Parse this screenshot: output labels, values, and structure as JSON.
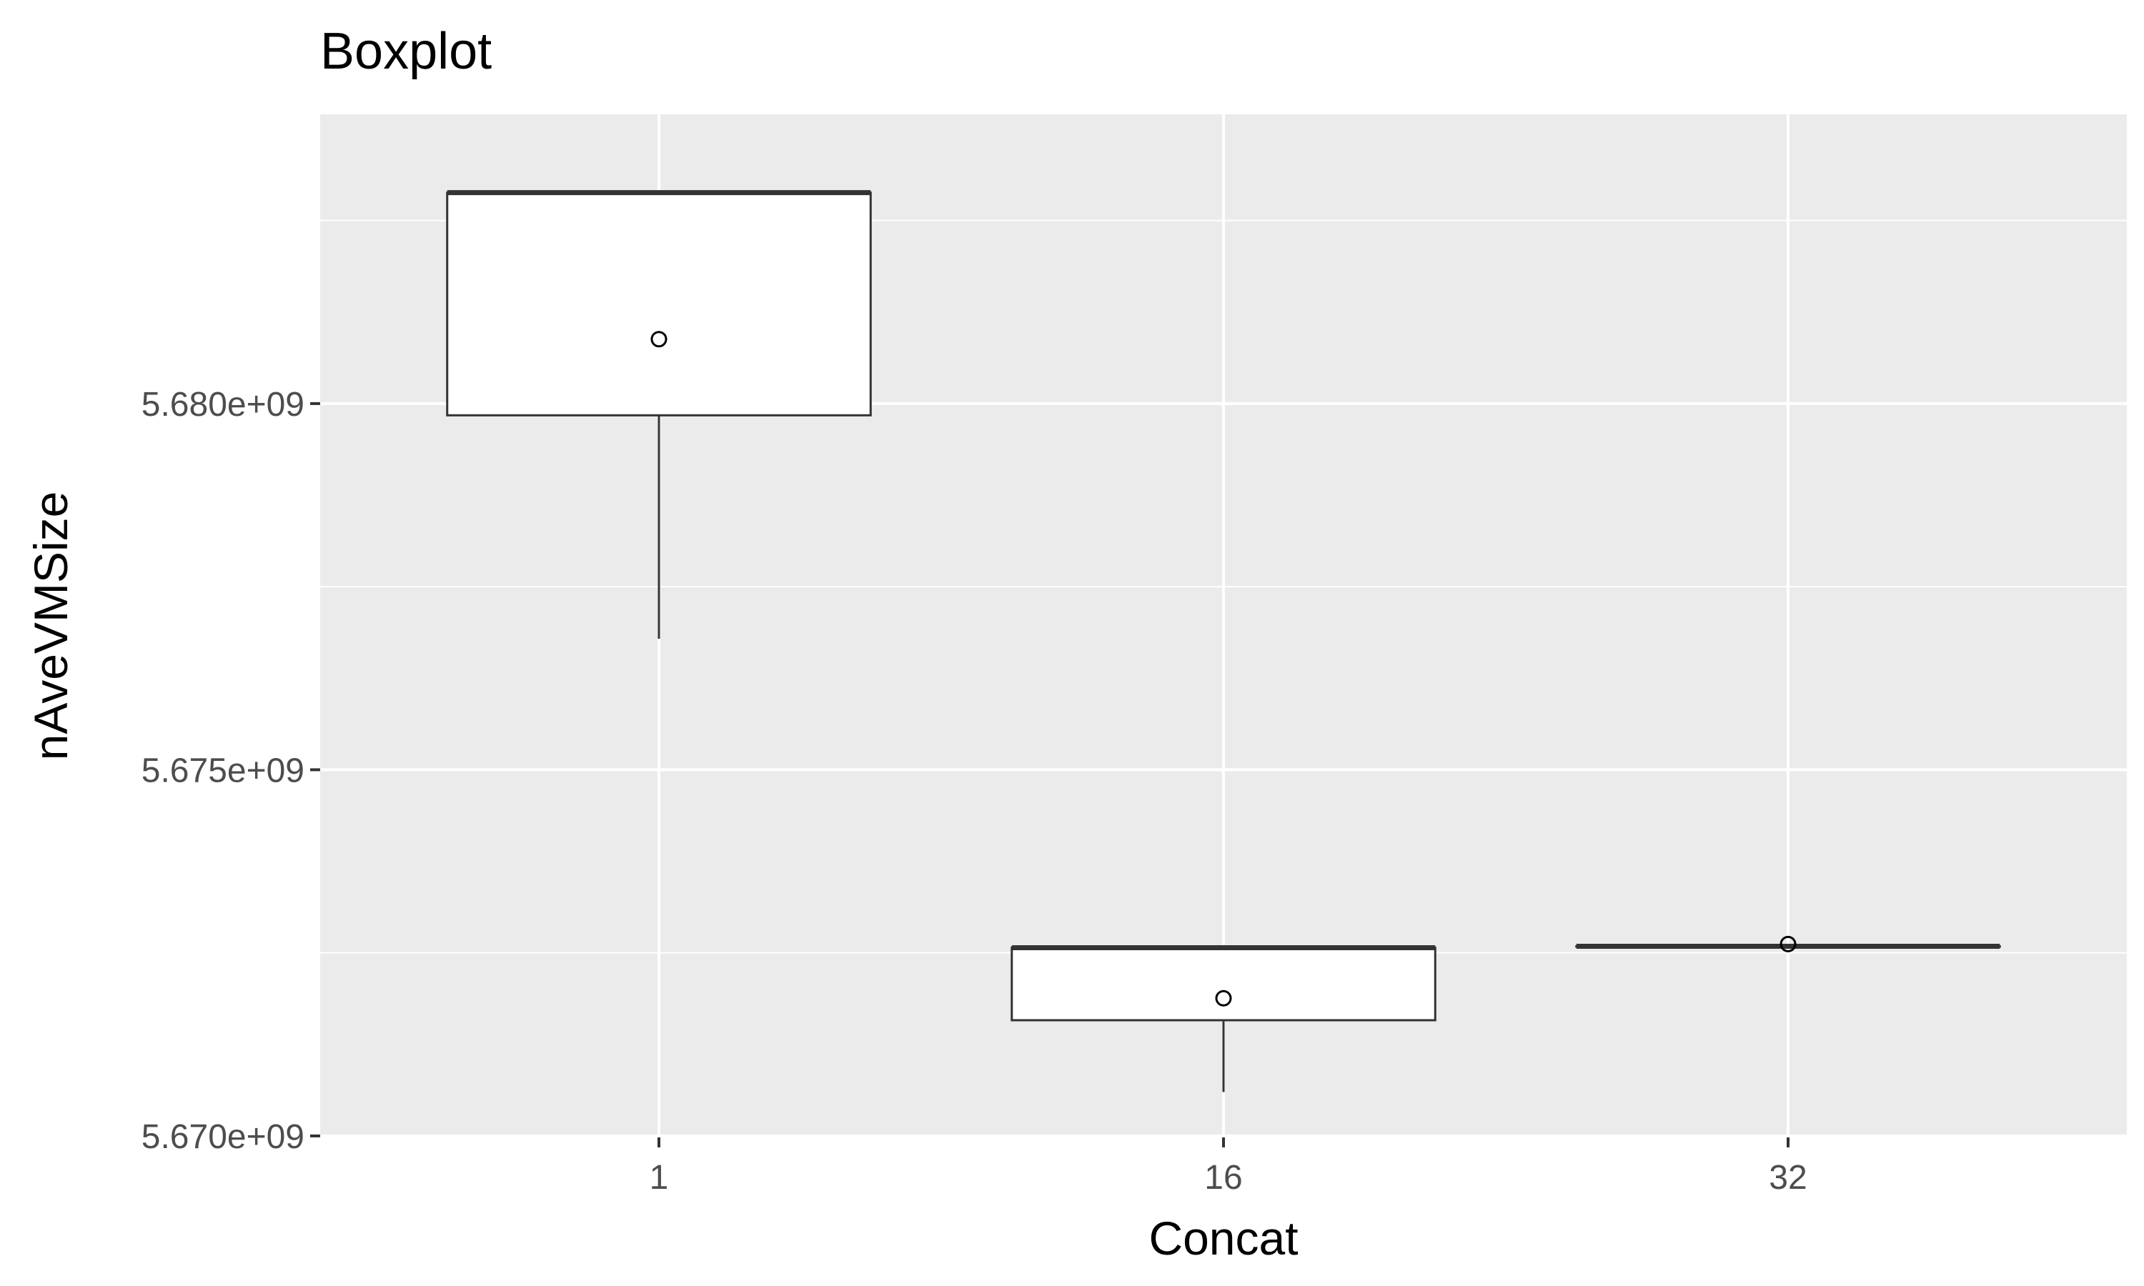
{
  "chart_data": {
    "type": "boxplot",
    "title": "Boxplot",
    "xlabel": "Concat",
    "ylabel": "nAveVMSize",
    "categories": [
      "1",
      "16",
      "32"
    ],
    "y_ticks": [
      5670000000,
      5675000000,
      5680000000
    ],
    "y_tick_labels": [
      "5.670e+09",
      "5.675e+09",
      "5.680e+09"
    ],
    "ylim": [
      5669980000,
      5683950000
    ],
    "grid": true,
    "boxes": [
      {
        "category": "1",
        "lower_whisker": 5676790000,
        "q1": 5679840000,
        "median": 5682880000,
        "q3": 5682880000,
        "upper_whisker": 5682880000,
        "outliers": [
          5680880000
        ]
      },
      {
        "category": "16",
        "lower_whisker": 5670600000,
        "q1": 5671580000,
        "median": 5672570000,
        "q3": 5672570000,
        "upper_whisker": 5672570000,
        "outliers": [
          5671880000
        ]
      },
      {
        "category": "32",
        "lower_whisker": 5672590000,
        "q1": 5672590000,
        "median": 5672590000,
        "q3": 5672590000,
        "upper_whisker": 5672590000,
        "outliers": [
          5672620000
        ]
      }
    ],
    "colors": {
      "panel": "#ebebeb",
      "grid": "#ffffff",
      "box_fill": "#ffffff",
      "box_line": "#333333"
    }
  }
}
